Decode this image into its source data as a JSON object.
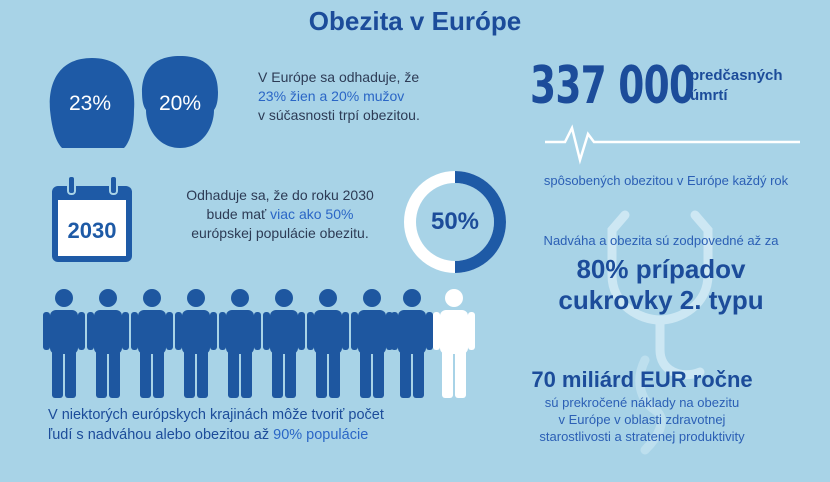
{
  "title": "Obezita v Európe",
  "gender": {
    "women": "23%",
    "men": "20%",
    "text": {
      "line1": "V Európe sa odhaduje, že",
      "line2": "23% žien a 20% mužov",
      "line3": "v súčasnosti trpí obezitou."
    }
  },
  "deaths": {
    "number": "337 000",
    "label1": "predčasných",
    "label2": "úmrtí",
    "caption": "spôsobených obezitou v Európe každý rok"
  },
  "forecast": {
    "calendar": "2030",
    "line1": "Odhaduje sa, že do roku 2030",
    "line2a": "bude mať",
    "line2b": "viac ako 50%",
    "line3": "európskej populácie obezitu.",
    "ring": "50%"
  },
  "diabetes": {
    "intro": "Nadváha a obezita sú zodpovedné až za",
    "line1": "80% prípadov",
    "line2": "cukrovky 2. typu"
  },
  "population": {
    "line1": "V niektorých európskych krajinách môže tvoriť počet",
    "line2a": "ľudí s nadváhou alebo obezitou až",
    "line2b": "90% populácie"
  },
  "costs": {
    "headline": "70 miliárd EUR ročne",
    "line1": "sú prekročené náklady na obezitu",
    "line2": "v Európe v oblasti zdravotnej",
    "line3": "starostlivosti a stratenej produktivity"
  }
}
